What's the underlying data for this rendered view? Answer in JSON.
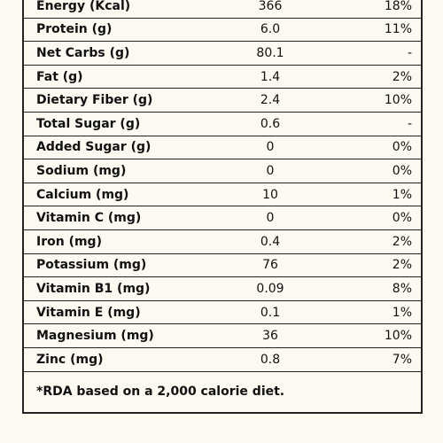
{
  "nutrition_table": {
    "rows": [
      {
        "nutrient": "Energy (Kcal)",
        "amount": "366",
        "rda": "18%"
      },
      {
        "nutrient": "Protein (g)",
        "amount": "6.0",
        "rda": "11%"
      },
      {
        "nutrient": "Net Carbs (g)",
        "amount": "80.1",
        "rda": "-"
      },
      {
        "nutrient": "Fat (g)",
        "amount": "1.4",
        "rda": "2%"
      },
      {
        "nutrient": "Dietary Fiber (g)",
        "amount": "2.4",
        "rda": "10%"
      },
      {
        "nutrient": "Total Sugar (g)",
        "amount": "0.6",
        "rda": "-"
      },
      {
        "nutrient": "Added Sugar (g)",
        "amount": "0",
        "rda": "0%"
      },
      {
        "nutrient": "Sodium (mg)",
        "amount": "0",
        "rda": "0%"
      },
      {
        "nutrient": "Calcium (mg)",
        "amount": "10",
        "rda": "1%"
      },
      {
        "nutrient": "Vitamin C (mg)",
        "amount": "0",
        "rda": "0%"
      },
      {
        "nutrient": "Iron (mg)",
        "amount": "0.4",
        "rda": "2%"
      },
      {
        "nutrient": "Potassium (mg)",
        "amount": "76",
        "rda": "2%"
      },
      {
        "nutrient": "Vitamin B1 (mg)",
        "amount": "0.09",
        "rda": "8%"
      },
      {
        "nutrient": "Vitamin E (mg)",
        "amount": "0.1",
        "rda": "1%"
      },
      {
        "nutrient": "Magnesium (mg)",
        "amount": "36",
        "rda": "10%"
      },
      {
        "nutrient": "Zinc (mg)",
        "amount": "0.8",
        "rda": "7%"
      }
    ],
    "footnote": "*RDA based on a 2,000 calorie diet."
  }
}
